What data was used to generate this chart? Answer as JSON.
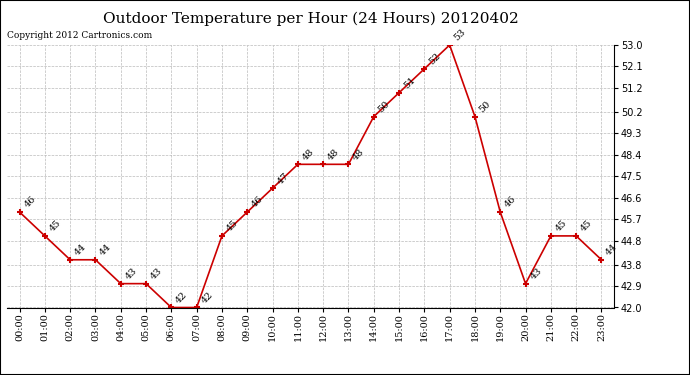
{
  "title": "Outdoor Temperature per Hour (24 Hours) 20120402",
  "copyright": "Copyright 2012 Cartronics.com",
  "hours": [
    "00:00",
    "01:00",
    "02:00",
    "03:00",
    "04:00",
    "05:00",
    "06:00",
    "07:00",
    "08:00",
    "09:00",
    "10:00",
    "11:00",
    "12:00",
    "13:00",
    "14:00",
    "15:00",
    "16:00",
    "17:00",
    "18:00",
    "19:00",
    "20:00",
    "21:00",
    "22:00",
    "23:00"
  ],
  "temperatures": [
    46,
    45,
    44,
    44,
    43,
    43,
    42,
    42,
    45,
    46,
    47,
    48,
    48,
    48,
    50,
    51,
    52,
    53,
    50,
    46,
    43,
    45,
    45,
    44
  ],
  "ylim": [
    42.0,
    53.0
  ],
  "yticks": [
    42.0,
    42.9,
    43.8,
    44.8,
    45.7,
    46.6,
    47.5,
    48.4,
    49.3,
    50.2,
    51.2,
    52.1,
    53.0
  ],
  "line_color": "#cc0000",
  "marker_color": "#cc0000",
  "background_color": "#ffffff",
  "grid_color": "#bbbbbb",
  "title_fontsize": 11,
  "tick_fontsize": 7,
  "annot_fontsize": 7,
  "copyright_fontsize": 6.5
}
